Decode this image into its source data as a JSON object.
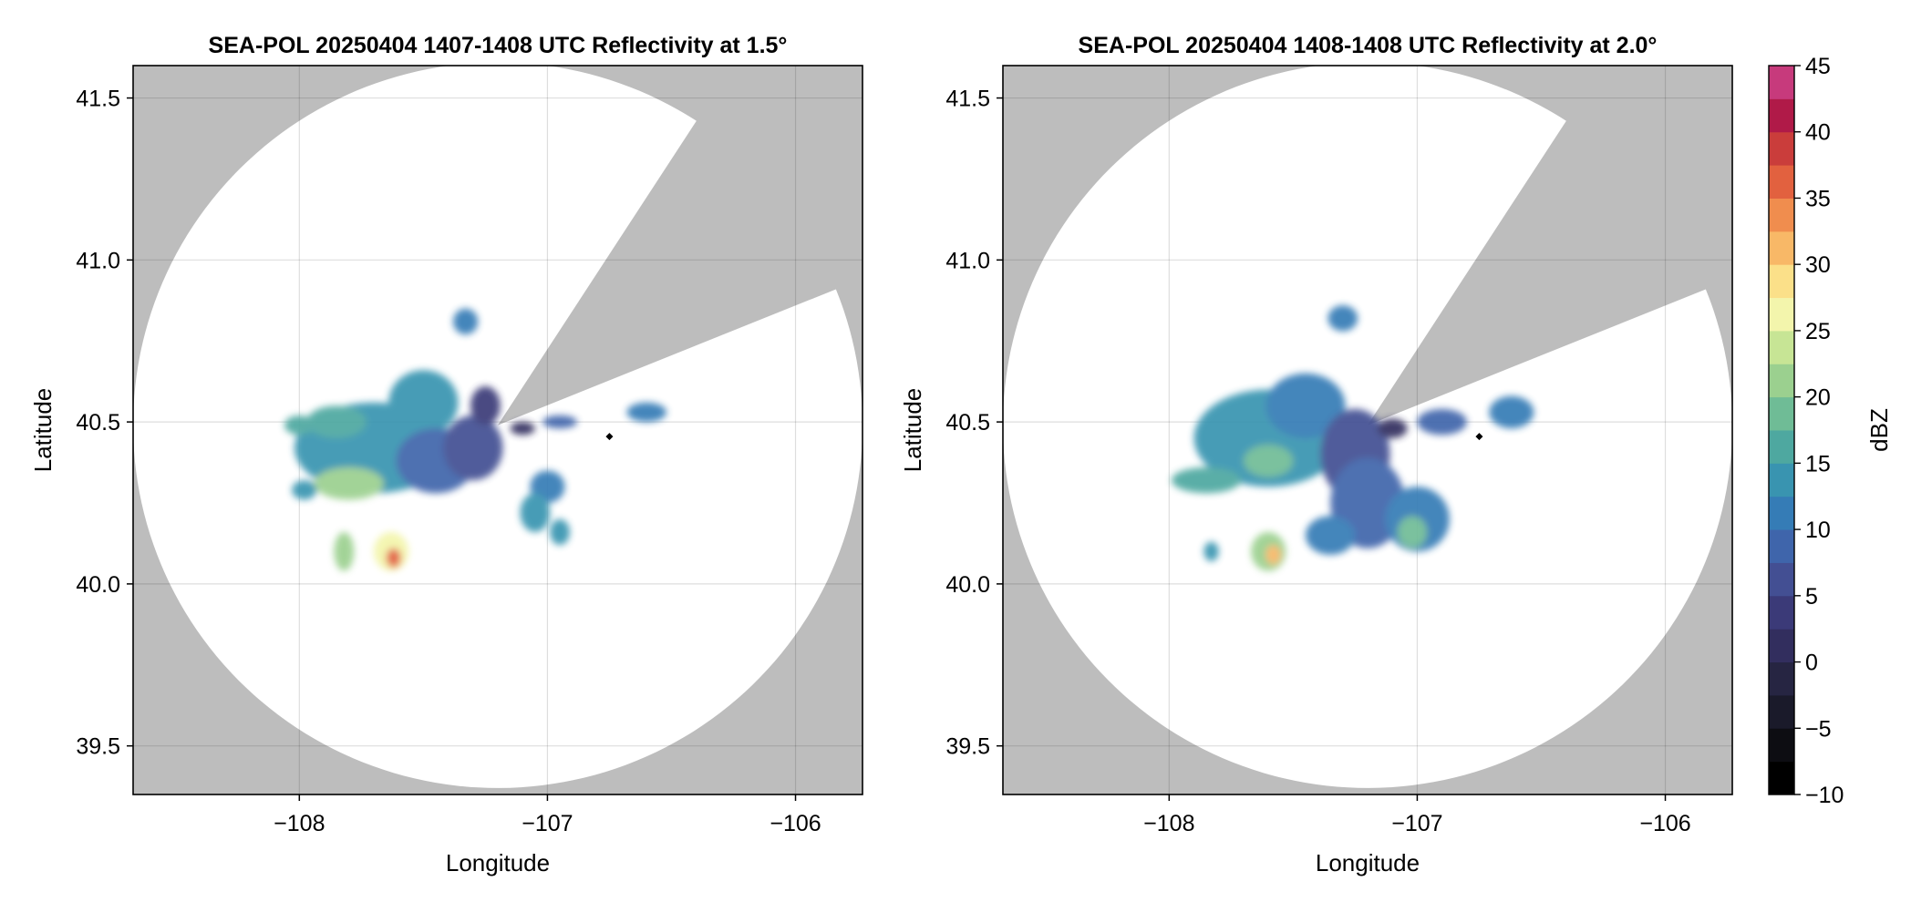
{
  "chart_data": [
    {
      "type": "heatmap",
      "title": "SEA-POL 20250404 1407-1408 UTC Reflectivity at 1.5°",
      "xlabel": "Longitude",
      "ylabel": "Latitude",
      "xlim": [
        -108.67,
        -105.73
      ],
      "ylim": [
        39.35,
        41.6
      ],
      "xticks": [
        -108,
        -107,
        -106
      ],
      "xtick_labels": [
        "−108",
        "−107",
        "−106"
      ],
      "yticks": [
        39.5,
        40.0,
        40.5,
        41.0,
        41.5
      ],
      "ytick_labels": [
        "39.5",
        "40.0",
        "40.5",
        "41.0",
        "41.5"
      ],
      "grid": true,
      "background_color": "#bdbdbd",
      "coverage": {
        "center": [
          -107.2,
          40.49
        ],
        "lat_radius": 1.12,
        "lon_radius": 1.47,
        "blocked_sector_deg": [
          22,
          57
        ]
      },
      "marker": {
        "lon": -106.75,
        "lat": 40.455
      },
      "echoes": [
        {
          "lon": -107.7,
          "lat": 40.42,
          "rlon": 0.32,
          "rlat": 0.14,
          "dbz": 14
        },
        {
          "lon": -107.5,
          "lat": 40.56,
          "rlon": 0.14,
          "rlat": 0.1,
          "dbz": 13
        },
        {
          "lon": -107.45,
          "lat": 40.38,
          "rlon": 0.16,
          "rlat": 0.1,
          "dbz": 9
        },
        {
          "lon": -107.8,
          "lat": 40.31,
          "rlon": 0.14,
          "rlat": 0.05,
          "dbz": 22
        },
        {
          "lon": -107.85,
          "lat": 40.5,
          "rlon": 0.12,
          "rlat": 0.05,
          "dbz": 17
        },
        {
          "lon": -108.0,
          "lat": 40.49,
          "rlon": 0.06,
          "rlat": 0.03,
          "dbz": 16
        },
        {
          "lon": -107.98,
          "lat": 40.29,
          "rlon": 0.05,
          "rlat": 0.03,
          "dbz": 14
        },
        {
          "lon": -107.3,
          "lat": 40.42,
          "rlon": 0.12,
          "rlat": 0.1,
          "dbz": 5
        },
        {
          "lon": -107.25,
          "lat": 40.55,
          "rlon": 0.06,
          "rlat": 0.06,
          "dbz": 4
        },
        {
          "lon": -107.82,
          "lat": 40.1,
          "rlon": 0.04,
          "rlat": 0.06,
          "dbz": 20
        },
        {
          "lon": -107.63,
          "lat": 40.1,
          "rlon": 0.07,
          "rlat": 0.06,
          "dbz": 27
        },
        {
          "lon": -107.62,
          "lat": 40.08,
          "rlon": 0.03,
          "rlat": 0.03,
          "dbz": 35
        },
        {
          "lon": -107.0,
          "lat": 40.3,
          "rlon": 0.07,
          "rlat": 0.05,
          "dbz": 10
        },
        {
          "lon": -107.05,
          "lat": 40.22,
          "rlon": 0.06,
          "rlat": 0.06,
          "dbz": 13
        },
        {
          "lon": -106.95,
          "lat": 40.16,
          "rlon": 0.04,
          "rlat": 0.04,
          "dbz": 14
        },
        {
          "lon": -106.95,
          "lat": 40.5,
          "rlon": 0.07,
          "rlat": 0.02,
          "dbz": 8
        },
        {
          "lon": -106.6,
          "lat": 40.53,
          "rlon": 0.08,
          "rlat": 0.03,
          "dbz": 12
        },
        {
          "lon": -107.33,
          "lat": 40.81,
          "rlon": 0.05,
          "rlat": 0.04,
          "dbz": 11
        },
        {
          "lon": -107.1,
          "lat": 40.48,
          "rlon": 0.05,
          "rlat": 0.02,
          "dbz": 2
        }
      ]
    },
    {
      "type": "heatmap",
      "title": "SEA-POL 20250404 1408-1408 UTC Reflectivity at 2.0°",
      "xlabel": "Longitude",
      "ylabel": "Latitude",
      "xlim": [
        -108.67,
        -105.73
      ],
      "ylim": [
        39.35,
        41.6
      ],
      "xticks": [
        -108,
        -107,
        -106
      ],
      "xtick_labels": [
        "−108",
        "−107",
        "−106"
      ],
      "yticks": [
        39.5,
        40.0,
        40.5,
        41.0,
        41.5
      ],
      "ytick_labels": [
        "39.5",
        "40.0",
        "40.5",
        "41.0",
        "41.5"
      ],
      "grid": true,
      "background_color": "#bdbdbd",
      "coverage": {
        "center": [
          -107.2,
          40.49
        ],
        "lat_radius": 1.12,
        "lon_radius": 1.47,
        "blocked_sector_deg": [
          22,
          57
        ]
      },
      "marker": {
        "lon": -106.75,
        "lat": 40.455
      },
      "echoes": [
        {
          "lon": -107.6,
          "lat": 40.45,
          "rlon": 0.3,
          "rlat": 0.15,
          "dbz": 13
        },
        {
          "lon": -107.45,
          "lat": 40.55,
          "rlon": 0.16,
          "rlat": 0.1,
          "dbz": 12
        },
        {
          "lon": -107.25,
          "lat": 40.4,
          "rlon": 0.14,
          "rlat": 0.14,
          "dbz": 6
        },
        {
          "lon": -107.6,
          "lat": 40.38,
          "rlon": 0.1,
          "rlat": 0.05,
          "dbz": 19
        },
        {
          "lon": -107.85,
          "lat": 40.32,
          "rlon": 0.14,
          "rlat": 0.04,
          "dbz": 16
        },
        {
          "lon": -107.2,
          "lat": 40.25,
          "rlon": 0.15,
          "rlat": 0.14,
          "dbz": 9
        },
        {
          "lon": -107.35,
          "lat": 40.15,
          "rlon": 0.1,
          "rlat": 0.06,
          "dbz": 10
        },
        {
          "lon": -107.0,
          "lat": 40.2,
          "rlon": 0.13,
          "rlat": 0.1,
          "dbz": 12
        },
        {
          "lon": -107.02,
          "lat": 40.16,
          "rlon": 0.06,
          "rlat": 0.05,
          "dbz": 18
        },
        {
          "lon": -106.9,
          "lat": 40.5,
          "rlon": 0.1,
          "rlat": 0.04,
          "dbz": 8
        },
        {
          "lon": -106.62,
          "lat": 40.53,
          "rlon": 0.09,
          "rlat": 0.05,
          "dbz": 12
        },
        {
          "lon": -107.6,
          "lat": 40.1,
          "rlon": 0.07,
          "rlat": 0.06,
          "dbz": 21
        },
        {
          "lon": -107.58,
          "lat": 40.09,
          "rlon": 0.03,
          "rlat": 0.03,
          "dbz": 30
        },
        {
          "lon": -107.3,
          "lat": 40.82,
          "rlon": 0.06,
          "rlat": 0.04,
          "dbz": 11
        },
        {
          "lon": -107.83,
          "lat": 40.1,
          "rlon": 0.03,
          "rlat": 0.03,
          "dbz": 14
        },
        {
          "lon": -107.1,
          "lat": 40.48,
          "rlon": 0.06,
          "rlat": 0.03,
          "dbz": 2
        }
      ]
    }
  ],
  "colorbar": {
    "label": "dBZ",
    "min": -10,
    "max": 45,
    "step": 2.5,
    "ticks": [
      "45",
      "40",
      "35",
      "30",
      "25",
      "20",
      "15",
      "10",
      "5",
      "0",
      "−5",
      "−10"
    ],
    "colors": [
      "#000000",
      "#0d0d12",
      "#1a1a2a",
      "#262542",
      "#322e5e",
      "#3b3a78",
      "#434f93",
      "#3f65ab",
      "#357cb6",
      "#3994b0",
      "#4ea8a0",
      "#6fbc96",
      "#9bd08f",
      "#c7e595",
      "#f3f5ac",
      "#fbe089",
      "#f8b867",
      "#f08d4e",
      "#e2613f",
      "#ca3d3b",
      "#b01a48",
      "#c73a7c",
      "#e46aa8",
      "#eea6cc",
      "#c9a4cf",
      "#a37ab8",
      "#7c4aa0",
      "#5a2386",
      "#3d0a6b"
    ]
  }
}
